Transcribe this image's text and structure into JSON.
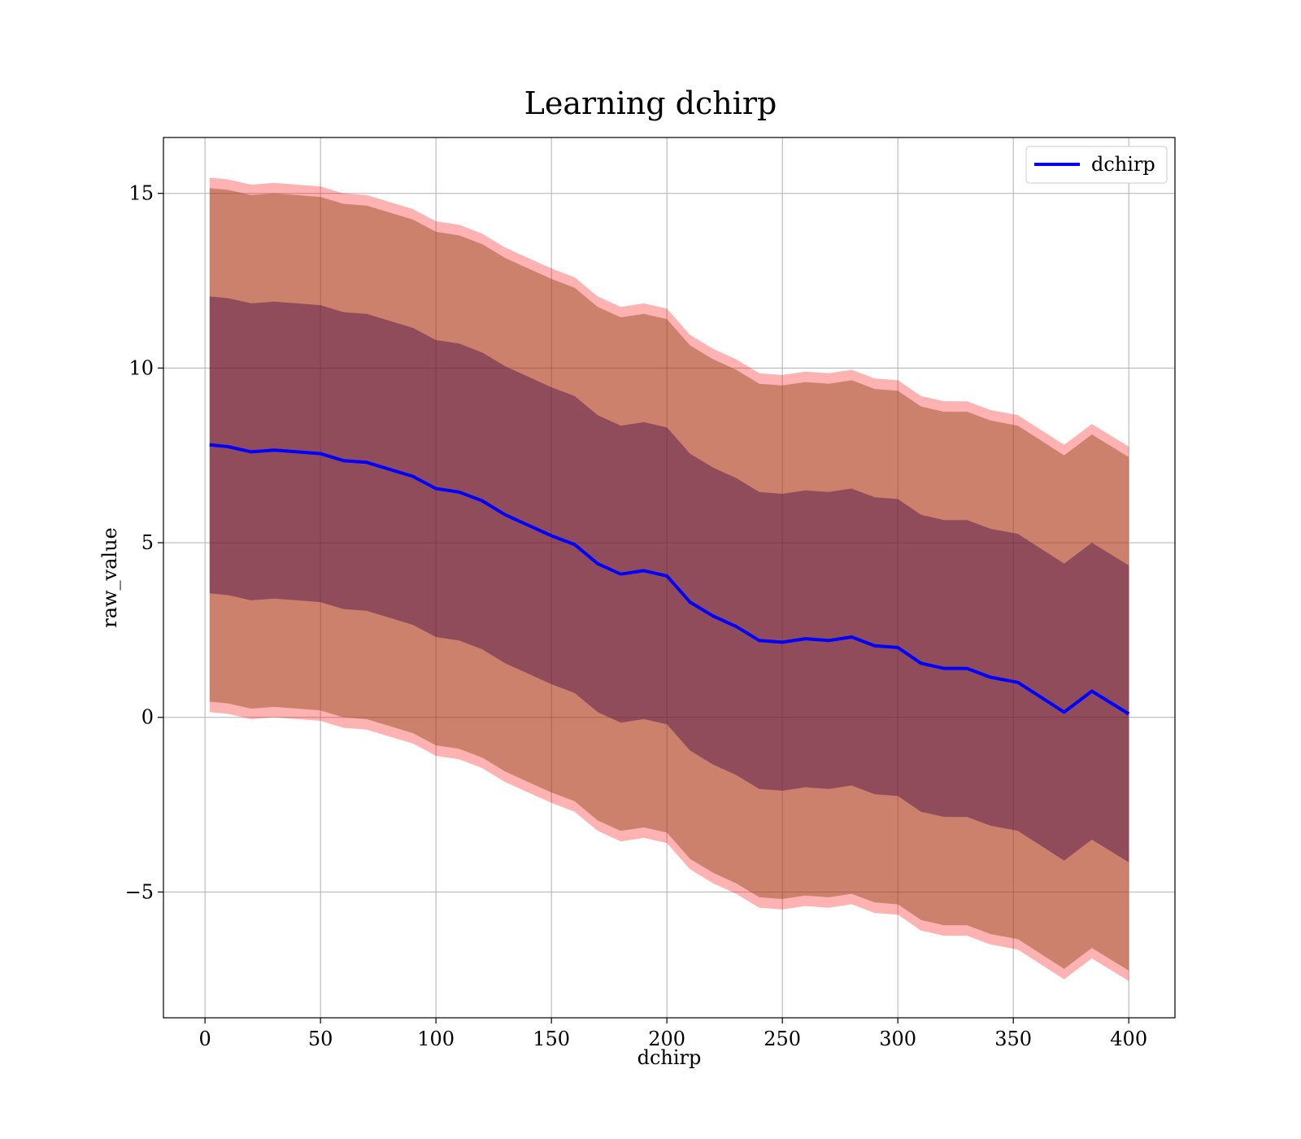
{
  "chart_data": {
    "type": "line",
    "title": "Learning dchirp",
    "xlabel": "dchirp",
    "ylabel": "raw_value",
    "xlim": [
      -18,
      420
    ],
    "ylim": [
      -8.6,
      16.6
    ],
    "xticks": [
      0,
      50,
      100,
      150,
      200,
      250,
      300,
      350,
      400
    ],
    "xtick_labels": [
      "0",
      "50",
      "100",
      "150",
      "200",
      "250",
      "300",
      "350",
      "400"
    ],
    "yticks": [
      -5,
      0,
      5,
      10,
      15
    ],
    "ytick_labels": [
      "−5",
      "0",
      "5",
      "10",
      "15"
    ],
    "grid": true,
    "legend_position": "top-right",
    "colors": {
      "line": "#0000ff",
      "band_outer": "#ff0000",
      "band_mid": "#8b4513",
      "band_inner": "#4b0a4b"
    },
    "series": [
      {
        "name": "dchirp",
        "x": [
          2,
          10,
          20,
          30,
          40,
          50,
          60,
          70,
          80,
          90,
          100,
          110,
          120,
          130,
          140,
          150,
          160,
          170,
          180,
          190,
          200,
          210,
          220,
          230,
          240,
          250,
          260,
          270,
          280,
          290,
          300,
          310,
          320,
          330,
          340,
          352,
          372,
          384,
          400
        ],
        "y": [
          7.8,
          7.75,
          7.6,
          7.65,
          7.6,
          7.55,
          7.35,
          7.3,
          7.1,
          6.9,
          6.55,
          6.45,
          6.2,
          5.8,
          5.5,
          5.2,
          4.95,
          4.4,
          4.1,
          4.2,
          4.05,
          3.3,
          2.9,
          2.6,
          2.2,
          2.15,
          2.25,
          2.2,
          2.3,
          2.05,
          2.0,
          1.55,
          1.4,
          1.4,
          1.15,
          1.0,
          0.15,
          0.75,
          0.1
        ]
      }
    ],
    "bands": [
      {
        "offset_outer": 7.65,
        "offset_mid": 7.35,
        "offset_inner": 4.25
      }
    ]
  }
}
